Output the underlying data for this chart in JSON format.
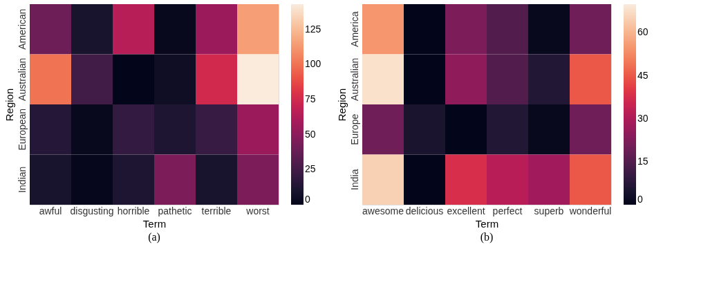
{
  "chart_data": [
    {
      "type": "heatmap",
      "xlabel": "Term",
      "ylabel": "Region",
      "annotations": [
        "(a)"
      ],
      "categories": [
        "awful",
        "disgusting",
        "horrible",
        "pathetic",
        "terrible",
        "worst"
      ],
      "y_categories": [
        "American",
        "Australian",
        "European",
        "Indian"
      ],
      "cells": [
        [
          40,
          10,
          65,
          2,
          55,
          115
        ],
        [
          100,
          25,
          0,
          5,
          75,
          143
        ],
        [
          15,
          2,
          20,
          12,
          22,
          55
        ],
        [
          10,
          1,
          12,
          45,
          10,
          45
        ]
      ],
      "clim": [
        0,
        143
      ],
      "cticks": [
        0,
        25,
        50,
        75,
        100,
        125
      ]
    },
    {
      "type": "heatmap",
      "xlabel": "Term",
      "ylabel": "Region",
      "annotations": [
        "(b)"
      ],
      "categories": [
        "awesome",
        "delicious",
        "excellent",
        "perfect",
        "superb",
        "wonderful"
      ],
      "y_categories": [
        "America",
        "Australian",
        "Europe",
        "India"
      ],
      "cells": [
        [
          55,
          0,
          22,
          15,
          1,
          20
        ],
        [
          68,
          0,
          25,
          15,
          7,
          45
        ],
        [
          20,
          5,
          0,
          7,
          1,
          20
        ],
        [
          65,
          0,
          38,
          32,
          28,
          45
        ]
      ],
      "clim": [
        0,
        70
      ],
      "cticks": [
        0,
        15,
        30,
        45,
        60
      ]
    }
  ]
}
